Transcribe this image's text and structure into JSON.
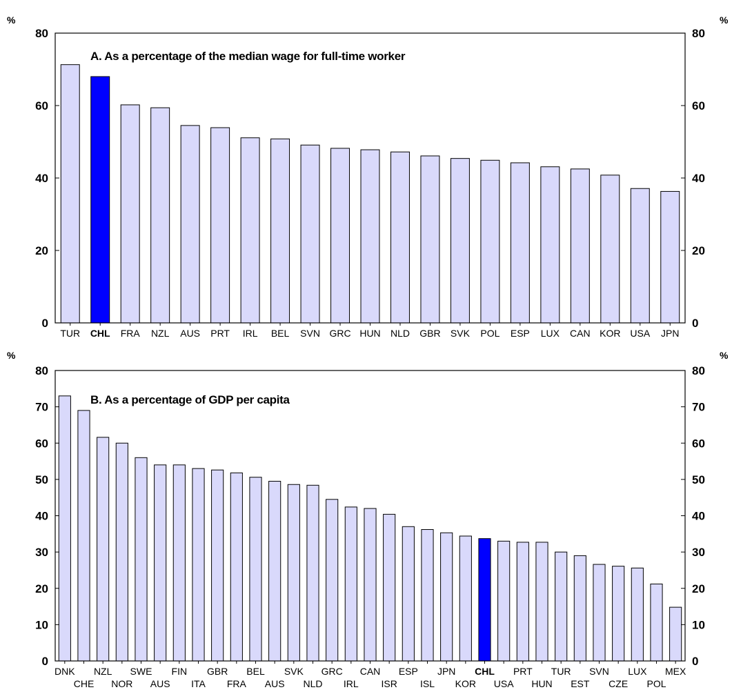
{
  "colors": {
    "bar": "#d9d9fb",
    "highlight": "#0000ff",
    "stroke": "#000000"
  },
  "chart_data": [
    {
      "type": "bar",
      "title": "A. As a percentage of the median wage for full-time worker",
      "unit_label": "%",
      "ylim": [
        0,
        80
      ],
      "ticks": [
        0,
        20,
        40,
        60,
        80
      ],
      "highlight": "CHL",
      "categories": [
        "TUR",
        "CHL",
        "FRA",
        "NZL",
        "AUS",
        "PRT",
        "IRL",
        "BEL",
        "SVN",
        "GRC",
        "HUN",
        "NLD",
        "GBR",
        "SVK",
        "POL",
        "ESP",
        "LUX",
        "CAN",
        "KOR",
        "USA",
        "JPN"
      ],
      "values": [
        71.3,
        68.0,
        60.2,
        59.4,
        54.5,
        53.9,
        51.1,
        50.8,
        49.1,
        48.2,
        47.8,
        47.2,
        46.1,
        45.4,
        44.9,
        44.2,
        43.1,
        42.5,
        40.8,
        37.1,
        36.3
      ]
    },
    {
      "type": "bar",
      "title": "B. As a percentage of GDP per capita",
      "unit_label": "%",
      "ylim": [
        0,
        80
      ],
      "ticks": [
        0,
        10,
        20,
        30,
        40,
        50,
        60,
        70,
        80
      ],
      "highlight": "CHL",
      "categories": [
        "DNK",
        "CHE",
        "NZL",
        "NOR",
        "SWE",
        "AUS",
        "FIN",
        "ITA",
        "GBR",
        "FRA",
        "BEL",
        "AUS",
        "SVK",
        "NLD",
        "GRC",
        "IRL",
        "CAN",
        "ISR",
        "ESP",
        "ISL",
        "JPN",
        "KOR",
        "CHL",
        "USA",
        "PRT",
        "HUN",
        "TUR",
        "EST",
        "SVN",
        "CZE",
        "LUX",
        "POL",
        "MEX"
      ],
      "values": [
        73.0,
        69.0,
        61.6,
        60.0,
        56.0,
        54.0,
        54.0,
        53.0,
        52.6,
        51.8,
        50.6,
        49.5,
        48.6,
        48.4,
        44.5,
        42.4,
        42.0,
        40.4,
        37.0,
        36.2,
        35.3,
        34.4,
        33.7,
        33.0,
        32.7,
        32.7,
        30.0,
        29.0,
        26.6,
        26.1,
        25.6,
        21.2,
        14.8
      ]
    }
  ]
}
